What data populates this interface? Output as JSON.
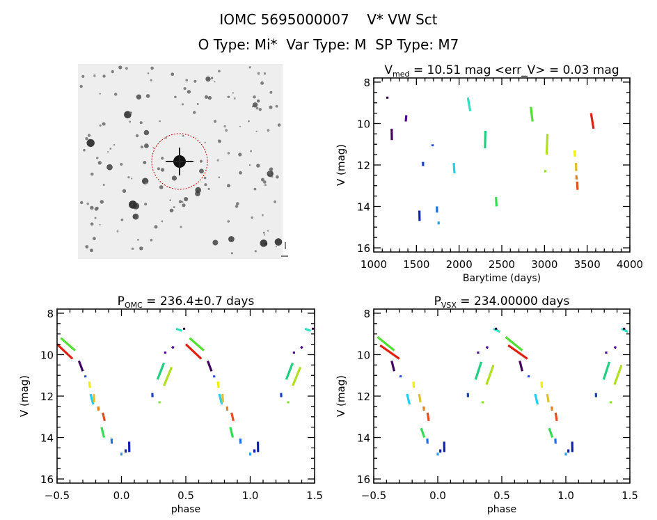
{
  "header": {
    "title": "IOMC 5695000007    V* VW Sct",
    "subtitle": "O Type: Mi*  Var Type: M  SP Type: M7"
  },
  "finder_image": {
    "target_marker_color": "#cc0000",
    "background": "#eeeeee"
  },
  "chart_data": [
    {
      "id": "lightcurve",
      "type": "scatter",
      "title_main": "V",
      "title_sub": "med",
      "title_rest": " = 10.51 mag <err_V> = 0.03 mag",
      "xlabel": "Barytime (days)",
      "ylabel": "V (mag)",
      "xlim": [
        1000,
        4000
      ],
      "ylim": [
        16.2,
        7.8
      ],
      "y_inverted": true,
      "xticks": [
        1000,
        1500,
        2000,
        2500,
        3000,
        3500,
        4000
      ],
      "yticks": [
        8,
        10,
        12,
        14,
        16
      ],
      "segments": [
        {
          "t": [
            1160,
            1160
          ],
          "V": [
            8.7,
            8.8
          ],
          "color": "#300040"
        },
        {
          "t": [
            1210,
            1212
          ],
          "V": [
            10.25,
            10.8
          ],
          "color": "#400060"
        },
        {
          "t": [
            1375,
            1382
          ],
          "V": [
            9.9,
            9.6
          ],
          "color": "#500090"
        },
        {
          "t": [
            1535,
            1537
          ],
          "V": [
            14.2,
            14.7
          ],
          "color": "#1020b0"
        },
        {
          "t": [
            1577,
            1578
          ],
          "V": [
            11.85,
            12.05
          ],
          "color": "#1840c0"
        },
        {
          "t": [
            1690,
            1690
          ],
          "V": [
            11.0,
            11.1
          ],
          "color": "#2050d0"
        },
        {
          "t": [
            1740,
            1741
          ],
          "V": [
            14.0,
            14.3
          ],
          "color": "#2070e0"
        },
        {
          "t": [
            1760,
            1760
          ],
          "V": [
            14.78,
            14.82
          ],
          "color": "#30a0e0"
        },
        {
          "t": [
            1938,
            1945
          ],
          "V": [
            11.9,
            12.4
          ],
          "color": "#20d0f0"
        },
        {
          "t": [
            2103,
            2130
          ],
          "V": [
            8.75,
            9.4
          ],
          "color": "#30e0c0"
        },
        {
          "t": [
            2303,
            2308
          ],
          "V": [
            11.2,
            10.35
          ],
          "color": "#20d080"
        },
        {
          "t": [
            2432,
            2438
          ],
          "V": [
            13.55,
            14.0
          ],
          "color": "#30e050"
        },
        {
          "t": [
            2840,
            2860
          ],
          "V": [
            9.2,
            9.9
          ],
          "color": "#50e030"
        },
        {
          "t": [
            3010,
            3010
          ],
          "V": [
            12.25,
            12.35
          ],
          "color": "#80e030"
        },
        {
          "t": [
            3025,
            3035
          ],
          "V": [
            11.5,
            10.5
          ],
          "color": "#b0e020"
        },
        {
          "t": [
            3353,
            3357
          ],
          "V": [
            11.3,
            11.6
          ],
          "color": "#f0f000"
        },
        {
          "t": [
            3368,
            3372
          ],
          "V": [
            11.9,
            12.3
          ],
          "color": "#e0c030"
        },
        {
          "t": [
            3373,
            3377
          ],
          "V": [
            12.5,
            12.7
          ],
          "color": "#e08020"
        },
        {
          "t": [
            3382,
            3388
          ],
          "V": [
            12.8,
            13.2
          ],
          "color": "#e05020"
        },
        {
          "t": [
            3545,
            3575
          ],
          "V": [
            9.5,
            10.25
          ],
          "color": "#e02010"
        }
      ]
    },
    {
      "id": "phase_omc",
      "type": "scatter",
      "title_main": "P",
      "title_sub": "OMC",
      "title_rest": " = 236.4±0.7 days",
      "xlabel": "phase",
      "ylabel": "V (mag)",
      "xlim": [
        -0.5,
        1.5
      ],
      "ylim": [
        16.2,
        7.8
      ],
      "y_inverted": true,
      "xticks": [
        "-0.5",
        "0.0",
        "0.5",
        "1.0",
        "1.5"
      ],
      "yticks": [
        8,
        10,
        12,
        14,
        16
      ],
      "repeat_period_phase": 1,
      "segments": [
        {
          "phase": [
            -0.5,
            -0.38
          ],
          "V": [
            9.5,
            10.2
          ],
          "color": "#e02010"
        },
        {
          "phase": [
            -0.47,
            -0.36
          ],
          "V": [
            9.2,
            9.8
          ],
          "color": "#50e030"
        },
        {
          "phase": [
            -0.33,
            -0.3
          ],
          "V": [
            10.3,
            10.8
          ],
          "color": "#400060"
        },
        {
          "phase": [
            -0.28,
            -0.28
          ],
          "V": [
            11.0,
            11.1
          ],
          "color": "#2050d0"
        },
        {
          "phase": [
            -0.25,
            -0.245
          ],
          "V": [
            11.3,
            11.6
          ],
          "color": "#f0f000"
        },
        {
          "phase": [
            -0.24,
            -0.22
          ],
          "V": [
            11.9,
            12.4
          ],
          "color": "#20d0f0"
        },
        {
          "phase": [
            -0.215,
            -0.212
          ],
          "V": [
            11.9,
            12.3
          ],
          "color": "#e0c030"
        },
        {
          "phase": [
            -0.18,
            -0.178
          ],
          "V": [
            12.5,
            12.7
          ],
          "color": "#e08020"
        },
        {
          "phase": [
            -0.145,
            -0.13
          ],
          "V": [
            12.8,
            13.2
          ],
          "color": "#e05020"
        },
        {
          "phase": [
            -0.155,
            -0.135
          ],
          "V": [
            13.5,
            14.0
          ],
          "color": "#30e050"
        },
        {
          "phase": [
            -0.077,
            -0.075
          ],
          "V": [
            14.05,
            14.3
          ],
          "color": "#2070e0"
        },
        {
          "phase": [
            0.0,
            0.0
          ],
          "V": [
            14.78,
            14.82
          ],
          "color": "#30a0e0"
        },
        {
          "phase": [
            0.033,
            0.033
          ],
          "V": [
            14.62,
            14.68
          ],
          "color": "#1020b0"
        },
        {
          "phase": [
            0.06,
            0.061
          ],
          "V": [
            14.2,
            14.7
          ],
          "color": "#1020b0"
        },
        {
          "phase": [
            0.24,
            0.241
          ],
          "V": [
            11.85,
            12.05
          ],
          "color": "#1840c0"
        },
        {
          "phase": [
            0.295,
            0.295
          ],
          "V": [
            12.25,
            12.35
          ],
          "color": "#80e030"
        },
        {
          "phase": [
            0.28,
            0.33
          ],
          "V": [
            11.2,
            10.4
          ],
          "color": "#20d080"
        },
        {
          "phase": [
            0.33,
            0.39
          ],
          "V": [
            11.5,
            10.6
          ],
          "color": "#b0e020"
        },
        {
          "phase": [
            0.34,
            0.34
          ],
          "V": [
            9.85,
            9.95
          ],
          "color": "#500090"
        },
        {
          "phase": [
            0.395,
            0.405
          ],
          "V": [
            9.7,
            9.6
          ],
          "color": "#500090"
        },
        {
          "phase": [
            0.425,
            0.47
          ],
          "V": [
            8.75,
            8.85
          ],
          "color": "#30e0c0"
        },
        {
          "phase": [
            0.487,
            0.487
          ],
          "V": [
            8.7,
            8.8
          ],
          "color": "#300040"
        }
      ]
    },
    {
      "id": "phase_vsx",
      "type": "scatter",
      "title_main": "P",
      "title_sub": "VSX",
      "title_rest": " = 234.00000 days",
      "xlabel": "phase",
      "ylabel": "V (mag)",
      "xlim": [
        -0.5,
        1.5
      ],
      "ylim": [
        16.2,
        7.8
      ],
      "y_inverted": true,
      "xticks": [
        "-0.5",
        "0.0",
        "0.5",
        "1.0",
        "1.5"
      ],
      "yticks": [
        8,
        10,
        12,
        14,
        16
      ],
      "repeat_period_phase": 1,
      "segments": [
        {
          "phase": [
            -0.45,
            -0.3
          ],
          "V": [
            9.55,
            10.2
          ],
          "color": "#e02010"
        },
        {
          "phase": [
            -0.47,
            -0.34
          ],
          "V": [
            9.15,
            9.8
          ],
          "color": "#50e030"
        },
        {
          "phase": [
            -0.36,
            -0.34
          ],
          "V": [
            10.3,
            10.8
          ],
          "color": "#400060"
        },
        {
          "phase": [
            -0.29,
            -0.29
          ],
          "V": [
            11.0,
            11.1
          ],
          "color": "#2050d0"
        },
        {
          "phase": [
            -0.19,
            -0.188
          ],
          "V": [
            11.3,
            11.6
          ],
          "color": "#f0f000"
        },
        {
          "phase": [
            -0.24,
            -0.22
          ],
          "V": [
            11.9,
            12.4
          ],
          "color": "#20d0f0"
        },
        {
          "phase": [
            -0.145,
            -0.135
          ],
          "V": [
            11.9,
            12.3
          ],
          "color": "#e0c030"
        },
        {
          "phase": [
            -0.11,
            -0.108
          ],
          "V": [
            12.5,
            12.7
          ],
          "color": "#e08020"
        },
        {
          "phase": [
            -0.08,
            -0.07
          ],
          "V": [
            12.8,
            13.2
          ],
          "color": "#e05020"
        },
        {
          "phase": [
            -0.13,
            -0.105
          ],
          "V": [
            13.55,
            14.0
          ],
          "color": "#30e050"
        },
        {
          "phase": [
            -0.082,
            -0.08
          ],
          "V": [
            14.05,
            14.3
          ],
          "color": "#2070e0"
        },
        {
          "phase": [
            0.0,
            0.0
          ],
          "V": [
            14.78,
            14.82
          ],
          "color": "#30a0e0"
        },
        {
          "phase": [
            0.02,
            0.02
          ],
          "V": [
            14.62,
            14.68
          ],
          "color": "#1020b0"
        },
        {
          "phase": [
            0.05,
            0.051
          ],
          "V": [
            14.2,
            14.7
          ],
          "color": "#1020b0"
        },
        {
          "phase": [
            0.235,
            0.236
          ],
          "V": [
            11.85,
            12.05
          ],
          "color": "#1840c0"
        },
        {
          "phase": [
            0.35,
            0.35
          ],
          "V": [
            12.25,
            12.35
          ],
          "color": "#80e030"
        },
        {
          "phase": [
            0.295,
            0.34
          ],
          "V": [
            11.2,
            10.35
          ],
          "color": "#20d080"
        },
        {
          "phase": [
            0.38,
            0.435
          ],
          "V": [
            11.45,
            10.5
          ],
          "color": "#b0e020"
        },
        {
          "phase": [
            0.315,
            0.315
          ],
          "V": [
            9.85,
            9.95
          ],
          "color": "#500090"
        },
        {
          "phase": [
            0.382,
            0.39
          ],
          "V": [
            9.7,
            9.6
          ],
          "color": "#500090"
        },
        {
          "phase": [
            0.435,
            0.485
          ],
          "V": [
            8.75,
            8.9
          ],
          "color": "#30e0c0"
        },
        {
          "phase": [
            0.455,
            0.455
          ],
          "V": [
            8.7,
            8.8
          ],
          "color": "#300040"
        }
      ]
    }
  ]
}
